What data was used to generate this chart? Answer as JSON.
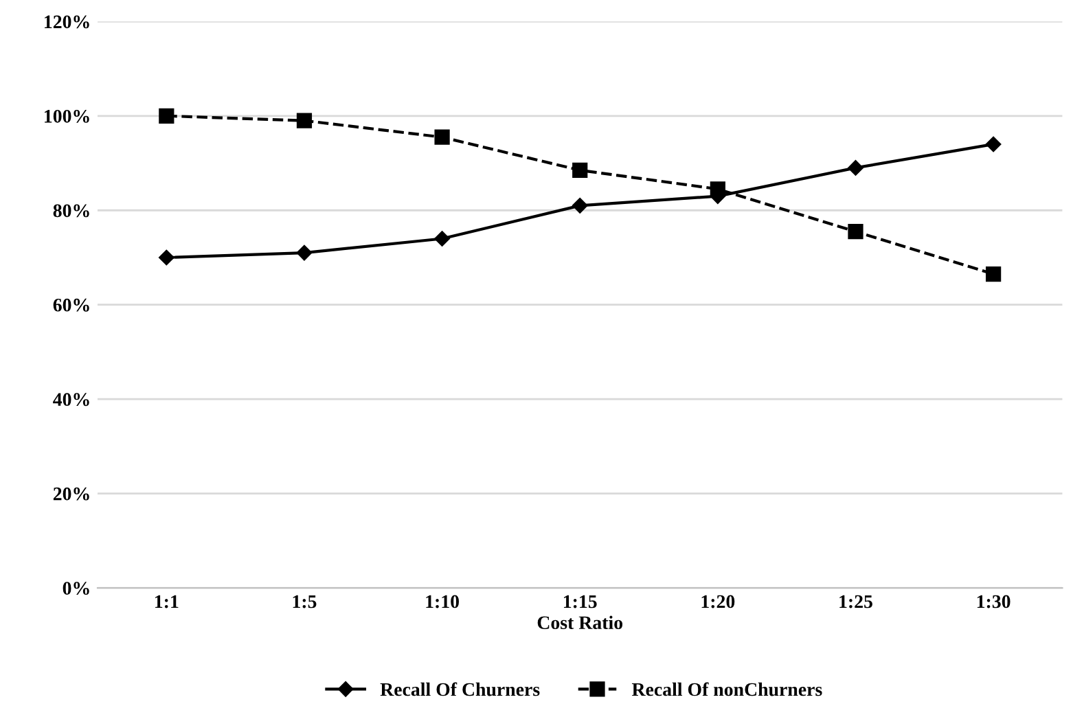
{
  "chart_data": {
    "type": "line",
    "xlabel": "Cost Ratio",
    "categories": [
      "1:1",
      "1:5",
      "1:10",
      "1:15",
      "1:20",
      "1:25",
      "1:30"
    ],
    "series": [
      {
        "name": "Recall Of Churners",
        "color": "#000000",
        "marker": "diamond",
        "line_style": "solid",
        "values": [
          70,
          71,
          74,
          81,
          83,
          89,
          94
        ]
      },
      {
        "name": "Recall Of nonChurners",
        "color": "#000000",
        "marker": "square",
        "line_style": "dashed",
        "values": [
          100,
          99,
          95.5,
          88.5,
          84.5,
          75.5,
          66.5
        ]
      }
    ],
    "ylim": [
      0,
      120
    ],
    "yticks": [
      {
        "value": 0,
        "label": "0%"
      },
      {
        "value": 20,
        "label": "20%"
      },
      {
        "value": 40,
        "label": "40%"
      },
      {
        "value": 60,
        "label": "60%"
      },
      {
        "value": 80,
        "label": "80%"
      },
      {
        "value": 100,
        "label": "100%"
      },
      {
        "value": 120,
        "label": "120%"
      }
    ],
    "grid": "y",
    "legend": "bottom"
  }
}
